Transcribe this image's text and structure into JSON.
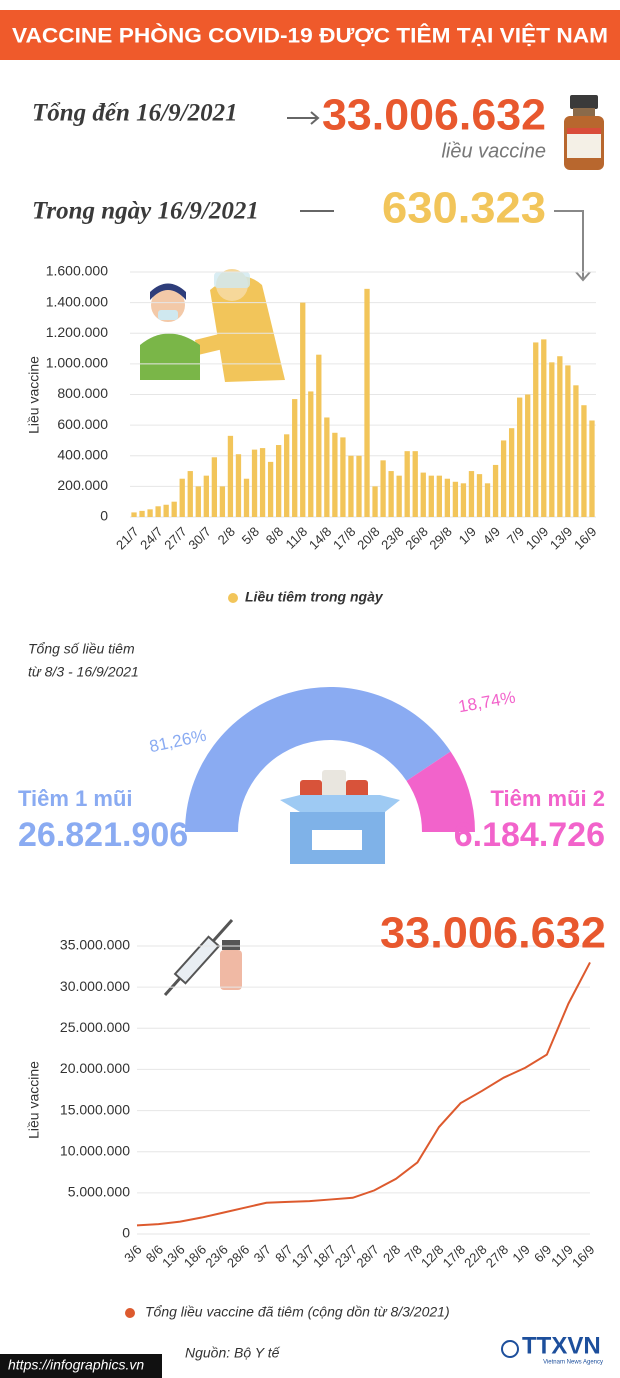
{
  "header": {
    "title": "VACCINE PHÒNG COVID-19 ĐƯỢC TIÊM TẠI VIỆT NAM"
  },
  "summary": {
    "total_label": "Tổng đến 16/9/2021",
    "total_value": "33.006.632",
    "total_unit": "liều vaccine",
    "daily_label": "Trong ngày 16/9/2021",
    "daily_value": "630.323"
  },
  "chart_data": [
    {
      "type": "bar",
      "y_label": "Liều vaccine",
      "categories": [
        "21/7",
        null,
        null,
        "24/7",
        null,
        null,
        "27/7",
        null,
        null,
        "30/7",
        null,
        null,
        "2/8",
        null,
        null,
        "5/8",
        null,
        null,
        "8/8",
        null,
        null,
        "11/8",
        null,
        null,
        "14/8",
        null,
        null,
        "17/8",
        null,
        null,
        "20/8",
        null,
        null,
        "23/8",
        null,
        null,
        "26/8",
        null,
        null,
        "29/8",
        null,
        null,
        "1/9",
        null,
        null,
        "4/9",
        null,
        null,
        "7/9",
        null,
        null,
        "10/9",
        null,
        null,
        "13/9",
        null,
        null,
        "16/9"
      ],
      "series": [
        {
          "name": "Liều tiêm trong ngày",
          "color": "#f2c55a",
          "values": [
            30000,
            40000,
            50000,
            70000,
            80000,
            100000,
            250000,
            300000,
            200000,
            270000,
            390000,
            200000,
            530000,
            410000,
            250000,
            440000,
            450000,
            360000,
            470000,
            540000,
            770000,
            1400000,
            820000,
            1060000,
            650000,
            550000,
            520000,
            400000,
            400000,
            1490000,
            200000,
            370000,
            300000,
            270000,
            430000,
            430000,
            290000,
            270000,
            270000,
            250000,
            230000,
            220000,
            300000,
            280000,
            220000,
            340000,
            500000,
            580000,
            780000,
            800000,
            1140000,
            1160000,
            1010000,
            1050000,
            990000,
            860000,
            730000,
            630323
          ]
        }
      ],
      "ylim": [
        0,
        1600000
      ],
      "yticks": [
        0,
        {
          "value": 200000,
          "label": "200.000"
        },
        {
          "value": 400000,
          "label": "400.000"
        },
        {
          "value": 600000,
          "label": "600.000"
        },
        {
          "value": 800000,
          "label": "800.000"
        },
        {
          "value": 1000000,
          "label": "1.000.000"
        },
        {
          "value": 1200000,
          "label": "1.200.000"
        },
        {
          "value": 1400000,
          "label": "1.400.000"
        },
        {
          "value": 1600000,
          "label": "1.600.000"
        }
      ],
      "grid": true
    },
    {
      "type": "pie",
      "title": "Tổng số liều tiêm",
      "subtitle": "từ 8/3 - 16/9/2021",
      "categories": [
        "Tiêm 1 mũi",
        "Tiêm mũi 2"
      ],
      "values": [
        81.26,
        18.74
      ],
      "value_labels": [
        "81,26%",
        "18,74%"
      ],
      "counts": [
        26821906,
        6184726
      ],
      "count_labels": [
        "26.821.906",
        "6.184.726"
      ],
      "colors": [
        "#8aabf2",
        "#f263cb"
      ]
    },
    {
      "type": "line",
      "y_label": "Liều vaccine",
      "annotation": "33.006.632",
      "categories": [
        "3/6",
        "8/6",
        "13/6",
        "18/6",
        "23/6",
        "28/6",
        "3/7",
        "8/7",
        "13/7",
        "18/7",
        "23/7",
        "28/7",
        "2/8",
        "7/8",
        "12/8",
        "17/8",
        "22/8",
        "27/8",
        "1/9",
        "6/9",
        "11/9",
        "16/9"
      ],
      "series": [
        {
          "name": "Tổng liều vaccine đã tiêm (cộng dồn từ 8/3/2021)",
          "color": "#dd5a2e",
          "values": [
            1050000,
            1200000,
            1500000,
            2000000,
            2600000,
            3200000,
            3800000,
            3900000,
            4000000,
            4200000,
            4400000,
            5300000,
            6700000,
            8700000,
            13000000,
            15900000,
            17400000,
            19000000,
            20200000,
            21800000,
            28000000,
            33006632
          ]
        }
      ],
      "ylim": [
        0,
        35000000
      ],
      "yticks": [
        0,
        {
          "value": 5000000,
          "label": "5.000.000"
        },
        {
          "value": 10000000,
          "label": "10.000.000"
        },
        {
          "value": 15000000,
          "label": "15.000.000"
        },
        {
          "value": 20000000,
          "label": "20.000.000"
        },
        {
          "value": 25000000,
          "label": "25.000.000"
        },
        {
          "value": 30000000,
          "label": "30.000.000"
        },
        {
          "value": 35000000,
          "label": "35.000.000"
        }
      ],
      "grid": true
    }
  ],
  "footer": {
    "source": "Nguồn: Bộ Y tế",
    "website": "https://infographics.vn",
    "brand": "TTXVN",
    "brand_sub": "Vietnam News Agency"
  }
}
